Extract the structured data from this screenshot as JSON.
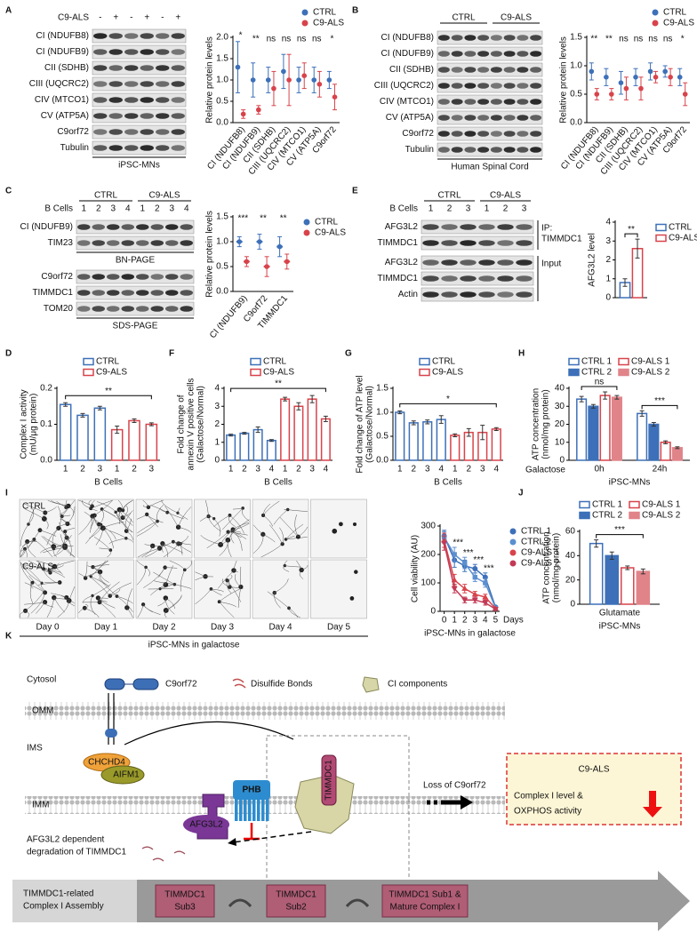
{
  "panel_labels": [
    "A",
    "B",
    "C",
    "D",
    "E",
    "F",
    "G",
    "H",
    "I",
    "J",
    "K"
  ],
  "blots": [
    {
      "header": "C9-ALS",
      "lanes": [
        "-",
        "+",
        "-",
        "+",
        "-",
        "+"
      ],
      "sections": [
        {
          "rows": [
            "CI (NDUFB8)",
            "CI (NDUFB9)",
            "CII (SDHB)",
            "CIII (UQCRC2)",
            "CIV (MTCO1)",
            "CV (ATP5A)",
            "C9orf72",
            "Tubulin"
          ],
          "caption": "iPSC-MNs"
        }
      ]
    },
    {
      "groups": [
        "CTRL",
        "C9-ALS"
      ],
      "sections": [
        {
          "rows": [
            "CI (NDUFB8)",
            "CI (NDUFB9)",
            "CII (SDHB)",
            "CIII (UQCRC2)",
            "CIV (MTCO1)",
            "CV (ATP5A)",
            "C9orf72",
            "Tubulin"
          ],
          "caption": "Human Spinal Cord"
        }
      ]
    },
    {
      "groups": [
        "CTRL",
        "C9-ALS"
      ],
      "header": "B Cells",
      "lanes": [
        "1",
        "2",
        "3",
        "4",
        "1",
        "2",
        "3",
        "4"
      ],
      "sections": [
        {
          "rows": [
            "CI (NDUFB9)",
            "TIM23"
          ],
          "caption": "BN-PAGE"
        },
        {
          "rows": [
            "C9orf72",
            "TIMMDC1",
            "TOM20"
          ],
          "caption": "SDS-PAGE"
        }
      ]
    },
    {
      "groups": [
        "CTRL",
        "C9-ALS"
      ],
      "header": "B Cells",
      "lanes": [
        "1",
        "2",
        "3",
        "1",
        "2",
        "3"
      ],
      "sections": [
        {
          "rows": [
            "AFG3L2",
            "TIMMDC1"
          ],
          "side": [
            "IP:",
            "TIMMDC1"
          ]
        },
        {
          "rows": [
            "AFG3L2",
            "TIMMDC1",
            "Actin"
          ],
          "side": [
            "Input"
          ]
        }
      ]
    }
  ],
  "chart_data": [
    {
      "type": "dot",
      "ylabel": [
        "Relative protein levels"
      ],
      "categories": [
        "CI (NDUFB8)",
        "CI (NDUFB9)",
        "CII (SDHB)",
        "CIII (UQCRC2)",
        "CIV (MTCO1)",
        "CV (ATP5A)",
        "C9orf72"
      ],
      "series": [
        {
          "name": "CTRL",
          "color": "#3d70b8",
          "values": [
            1.3,
            1.0,
            1.0,
            1.2,
            1.0,
            1.0,
            1.0
          ],
          "errors": [
            0.6,
            0.4,
            0.3,
            0.4,
            0.3,
            0.3,
            0.2
          ]
        },
        {
          "name": "C9-ALS",
          "color": "#d8434b",
          "values": [
            0.2,
            0.3,
            0.8,
            1.0,
            1.1,
            0.9,
            0.6
          ],
          "errors": [
            0.1,
            0.1,
            0.4,
            0.6,
            0.3,
            0.3,
            0.3
          ]
        }
      ],
      "annotations": [
        "*",
        "**",
        "ns",
        "ns",
        "ns",
        "ns",
        "*"
      ],
      "ylim": [
        0,
        2
      ],
      "yticks": [
        {
          "value": 0,
          "label": "0.0"
        },
        {
          "value": 0.5,
          "label": "0.5"
        },
        {
          "value": 1,
          "label": "1.0"
        },
        {
          "value": 1.5,
          "label": "1.5"
        },
        {
          "value": 2,
          "label": "2.0"
        }
      ],
      "legend": "top-right"
    },
    {
      "type": "dot",
      "ylabel": [
        "Relative protein levels"
      ],
      "categories": [
        "CI (NDUFB8)",
        "CI (NDUFB9)",
        "CII (SDHB)",
        "CIII (UQCRC2)",
        "CIV (MTCO1)",
        "CV (ATP5A)",
        "C9orf72"
      ],
      "series": [
        {
          "name": "CTRL",
          "color": "#3d70b8",
          "values": [
            0.9,
            0.8,
            0.7,
            0.8,
            0.9,
            0.9,
            0.8
          ],
          "errors": [
            0.15,
            0.15,
            0.2,
            0.15,
            0.15,
            0.1,
            0.15
          ]
        },
        {
          "name": "C9-ALS",
          "color": "#d8434b",
          "values": [
            0.5,
            0.5,
            0.6,
            0.6,
            0.8,
            0.8,
            0.5
          ],
          "errors": [
            0.1,
            0.1,
            0.2,
            0.2,
            0.1,
            0.15,
            0.2
          ]
        }
      ],
      "annotations": [
        "**",
        "**",
        "ns",
        "ns",
        "ns",
        "ns",
        "*"
      ],
      "ylim": [
        0,
        1.5
      ],
      "yticks": [
        {
          "value": 0,
          "label": "0.0"
        },
        {
          "value": 0.5,
          "label": "0.5"
        },
        {
          "value": 1,
          "label": "1.0"
        },
        {
          "value": 1.5,
          "label": "1.5"
        }
      ],
      "legend": "top-right"
    },
    {
      "type": "dot",
      "ylabel": [
        "Relative protein levels"
      ],
      "categories": [
        "CI (NDUFB9)",
        "C9orf72",
        "TIMMDC1"
      ],
      "series": [
        {
          "name": "CTRL",
          "color": "#3d70b8",
          "values": [
            1.0,
            1.0,
            0.9
          ],
          "errors": [
            0.1,
            0.15,
            0.2
          ]
        },
        {
          "name": "C9-ALS",
          "color": "#d8434b",
          "values": [
            0.6,
            0.5,
            0.6
          ],
          "errors": [
            0.1,
            0.2,
            0.15
          ]
        }
      ],
      "annotations": [
        "***",
        "**",
        "**"
      ],
      "ylim": [
        0,
        1.5
      ],
      "yticks": [
        {
          "value": 0,
          "label": "0.0"
        },
        {
          "value": 0.5,
          "label": "0.5"
        },
        {
          "value": 1,
          "label": "1.0"
        },
        {
          "value": 1.5,
          "label": "1.5"
        }
      ],
      "legend": "right"
    },
    {
      "type": "bar",
      "ylabel": [
        "AFG3L2 level"
      ],
      "categories": [
        null
      ],
      "series": [
        {
          "name": "CTRL",
          "color": "#3d70b8",
          "style": "open",
          "values": [
            0.8
          ],
          "errors": [
            0.2
          ]
        },
        {
          "name": "C9-ALS",
          "color": "#d8434b",
          "style": "open",
          "values": [
            2.6
          ],
          "errors": [
            0.5
          ]
        }
      ],
      "annotations": [
        "**"
      ],
      "ylim": [
        0,
        4
      ],
      "yticks": [
        0,
        1,
        2,
        3,
        4
      ],
      "legend": "right"
    },
    {
      "type": "bar",
      "ylabel": [
        "Complex I activity",
        "(mU/μg protein)"
      ],
      "xlabel": "B Cells",
      "categories": [
        "1",
        "2",
        "3",
        "1",
        "2",
        "3"
      ],
      "series": [
        {
          "name": "CTRL",
          "color": "#3d70b8",
          "style": "open",
          "values": [
            0.155,
            0.125,
            0.145,
            null,
            null,
            null
          ],
          "errors": [
            0.005,
            0.005,
            0.005,
            null,
            null,
            null
          ]
        },
        {
          "name": "C9-ALS",
          "color": "#d8434b",
          "style": "open",
          "values": [
            null,
            null,
            null,
            0.085,
            0.11,
            0.1
          ],
          "errors": [
            null,
            null,
            null,
            0.01,
            0.005,
            0.004
          ]
        }
      ],
      "annotations": [
        "**"
      ],
      "ylim": [
        0,
        0.2
      ],
      "yticks": [
        {
          "value": 0,
          "label": "0.0"
        },
        {
          "value": 0.1,
          "label": "0.1"
        },
        {
          "value": 0.2,
          "label": "0.2"
        }
      ],
      "legend": "top"
    },
    {
      "type": "bar",
      "ylabel": [
        "Fold change of",
        "annexin V positive cells",
        "(Galactose/Normal)"
      ],
      "xlabel": "B Cells",
      "categories": [
        "1",
        "2",
        "3",
        "4",
        "1",
        "2",
        "3",
        "4"
      ],
      "series": [
        {
          "name": "CTRL",
          "color": "#3d70b8",
          "style": "open",
          "values": [
            1.4,
            1.5,
            1.7,
            1.1,
            null,
            null,
            null,
            null
          ],
          "errors": [
            0.05,
            0.05,
            0.15,
            0.05,
            null,
            null,
            null,
            null
          ]
        },
        {
          "name": "C9-ALS",
          "color": "#d8434b",
          "style": "open",
          "values": [
            null,
            null,
            null,
            null,
            3.4,
            3.0,
            3.4,
            2.3
          ],
          "errors": [
            null,
            null,
            null,
            null,
            0.1,
            0.2,
            0.2,
            0.15
          ]
        }
      ],
      "annotations": [
        "**"
      ],
      "ylim": [
        0,
        4
      ],
      "yticks": [
        0,
        1,
        2,
        3,
        4
      ],
      "legend": "top"
    },
    {
      "type": "bar",
      "ylabel": [
        "Fold change of ATP level",
        "(Galactose/Normal)"
      ],
      "xlabel": "B Cells",
      "categories": [
        "1",
        "2",
        "3",
        "4",
        "1",
        "2",
        "3",
        "4"
      ],
      "series": [
        {
          "name": "CTRL",
          "color": "#3d70b8",
          "style": "open",
          "values": [
            1.0,
            0.78,
            0.8,
            0.85,
            null,
            null,
            null,
            null
          ],
          "errors": [
            0.03,
            0.04,
            0.04,
            0.08,
            null,
            null,
            null,
            null
          ]
        },
        {
          "name": "C9-ALS",
          "color": "#d8434b",
          "style": "open",
          "values": [
            null,
            null,
            null,
            null,
            0.52,
            0.58,
            0.58,
            0.65
          ],
          "errors": [
            null,
            null,
            null,
            null,
            0.03,
            0.08,
            0.15,
            0.03
          ]
        }
      ],
      "annotations": [
        "*"
      ],
      "ylim": [
        0,
        1.5
      ],
      "yticks": [
        {
          "value": 0,
          "label": "0.0"
        },
        {
          "value": 0.5,
          "label": "0.5"
        },
        {
          "value": 1,
          "label": "1.0"
        },
        {
          "value": 1.5,
          "label": "1.5"
        }
      ],
      "legend": "top"
    },
    {
      "type": "bar",
      "ylabel": [
        "ATP concentration",
        "(nmol/mg protein)"
      ],
      "x_prefix": "Galactose",
      "xlabel": "iPSC-MNs",
      "categories": [
        "0h",
        "24h"
      ],
      "series": [
        {
          "name": "CTRL 1",
          "color": "#3d70b8",
          "style": "open",
          "values": [
            34,
            26
          ],
          "errors": [
            1.5,
            1.5
          ]
        },
        {
          "name": "CTRL 2",
          "color": "#3d70b8",
          "style": "filled",
          "values": [
            30,
            20
          ],
          "errors": [
            1,
            1
          ]
        },
        {
          "name": "C9-ALS 1",
          "color": "#d8434b",
          "style": "open",
          "values": [
            36,
            10
          ],
          "errors": [
            2,
            0.8
          ]
        },
        {
          "name": "C9-ALS 2",
          "color": "#e0848a",
          "style": "filled",
          "values": [
            35,
            7
          ],
          "errors": [
            1,
            0.5
          ]
        }
      ],
      "annotations": [
        "ns",
        "***"
      ],
      "ylim": [
        0,
        40
      ],
      "yticks": [
        0,
        10,
        20,
        30,
        40
      ],
      "legend": "top",
      "legend_columns": 2
    },
    {
      "type": "line",
      "ylabel": [
        "Cell viability (AU)"
      ],
      "xlabel": "iPSC-MNs in galactose",
      "x_unit": "Days",
      "x": [
        0,
        1,
        2,
        3,
        4,
        5
      ],
      "series": [
        {
          "name": "CTRL 1",
          "color": "#3d70b8",
          "marker": "circle",
          "values": [
            265,
            180,
            160,
            150,
            120,
            15
          ],
          "errors": [
            20,
            25,
            20,
            15,
            15,
            3
          ]
        },
        {
          "name": "CTRL 2",
          "color": "#5b8fd0",
          "marker": "square",
          "values": [
            260,
            200,
            170,
            120,
            100,
            12
          ],
          "errors": [
            20,
            25,
            20,
            15,
            15,
            3
          ]
        },
        {
          "name": "C9-ALS 1",
          "color": "#d8434b",
          "marker": "triangle-up",
          "values": [
            250,
            110,
            80,
            60,
            50,
            10
          ],
          "errors": [
            25,
            20,
            15,
            10,
            10,
            3
          ]
        },
        {
          "name": "C9-ALS 2",
          "color": "#c23a55",
          "marker": "triangle-down",
          "values": [
            240,
            80,
            40,
            40,
            30,
            8
          ],
          "errors": [
            25,
            15,
            10,
            10,
            8,
            3
          ]
        }
      ],
      "annotations": [
        {
          "x": 1,
          "text": "***"
        },
        {
          "x": 2,
          "text": "***"
        },
        {
          "x": 3,
          "text": "***"
        },
        {
          "x": 4,
          "text": "***"
        }
      ],
      "xlim": [
        -0.4,
        5.4
      ],
      "xticks": [
        0,
        1,
        2,
        3,
        4,
        5
      ],
      "ylim": [
        0,
        300
      ],
      "yticks": [
        0,
        100,
        200,
        300
      ],
      "legend": "right"
    },
    {
      "type": "bar",
      "ylabel": [
        "ATP concentration",
        "(nmol/mg protein)"
      ],
      "xlabel": "iPSC-MNs",
      "categories": [
        "Glutamate"
      ],
      "series": [
        {
          "name": "CTRL 1",
          "color": "#3d70b8",
          "style": "open",
          "values": [
            50
          ],
          "errors": [
            3
          ]
        },
        {
          "name": "CTRL 2",
          "color": "#3d70b8",
          "style": "filled",
          "values": [
            40
          ],
          "errors": [
            3
          ]
        },
        {
          "name": "C9-ALS 1",
          "color": "#d8434b",
          "style": "open",
          "values": [
            30
          ],
          "errors": [
            1.5
          ]
        },
        {
          "name": "C9-ALS 2",
          "color": "#e0848a",
          "style": "filled",
          "values": [
            27
          ],
          "errors": [
            2
          ]
        }
      ],
      "annotations": [
        "***"
      ],
      "ylim": [
        0,
        60
      ],
      "yticks": [
        0,
        20,
        40,
        60
      ],
      "legend": "top",
      "legend_columns": 2
    }
  ],
  "micrographs": {
    "rows": [
      "CTRL",
      "C9-ALS"
    ],
    "columns": [
      "Day 0",
      "Day 1",
      "Day 2",
      "Day 3",
      "Day 4",
      "Day 5"
    ],
    "caption": "iPSC-MNs in galactose"
  },
  "diagram": {
    "compartments": [
      "Cytosol",
      "IMS"
    ],
    "membranes": [
      "OMM",
      "IMM"
    ],
    "legend": [
      "C9orf72",
      "Disulfide Bonds",
      "CI components"
    ],
    "proteins": [
      "CHCHD4",
      "AIFM1",
      "PHB",
      "AFG3L2",
      "TIMMDC1"
    ],
    "degradation": [
      "AFG3L2 dependent",
      "degradation of TIMMDC1"
    ],
    "trigger": "Loss of C9orf72",
    "outcome": {
      "title": "C9-ALS",
      "lines": [
        "Complex I level &",
        "OXPHOS activity"
      ]
    },
    "assembly": {
      "label": [
        "TIMMDC1-related",
        "Complex I Assembly"
      ],
      "steps": [
        [
          "TIMMDC1",
          "Sub3"
        ],
        [
          "TIMMDC1",
          "Sub2"
        ],
        [
          "TIMMDC1 Sub1 &",
          "Mature Complex I"
        ]
      ]
    }
  }
}
